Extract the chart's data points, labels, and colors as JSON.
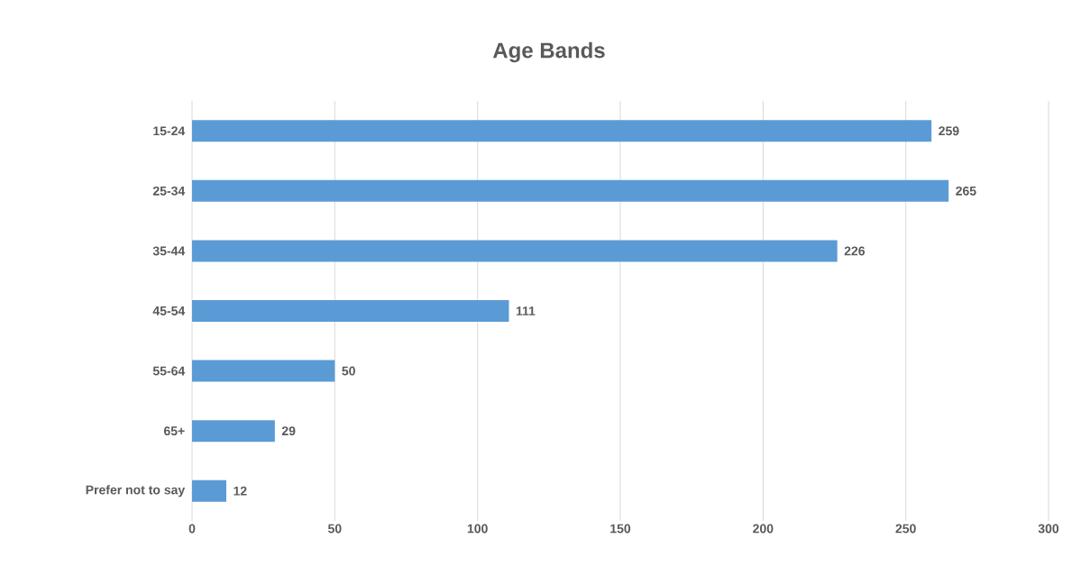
{
  "chart_data": {
    "type": "bar",
    "orientation": "horizontal",
    "title": "Age Bands",
    "categories": [
      "15-24",
      "25-34",
      "35-44",
      "45-54",
      "55-64",
      "65+",
      "Prefer not to say"
    ],
    "values": [
      259,
      265,
      226,
      111,
      50,
      29,
      12
    ],
    "color": "#5b9bd5",
    "xlim": [
      0,
      300
    ],
    "xticks": [
      0,
      50,
      100,
      150,
      200,
      250,
      300
    ],
    "grid": "x",
    "data_labels": true
  }
}
